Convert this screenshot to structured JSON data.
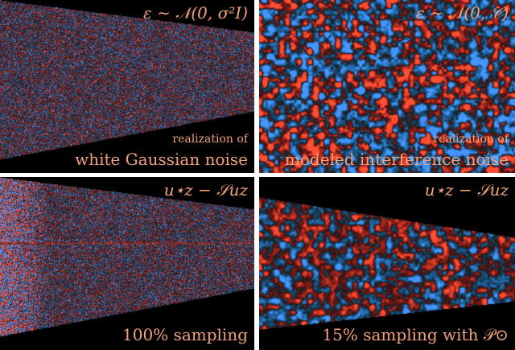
{
  "panels": [
    {
      "id": "top-left",
      "math_label": "ε ∼ 𝒩(0, σ²I)",
      "caption_line1": "realization of",
      "caption_line2": "white Gaussian noise",
      "noise_style": "white",
      "shape": "wedge"
    },
    {
      "id": "top-right",
      "math_label": "ε ∼ 𝒩(0, 𝒞)",
      "caption_line1": "realization of",
      "caption_line2": "modeled interference noise",
      "noise_style": "correlated",
      "shape": "full"
    },
    {
      "id": "bottom-left",
      "math_label": "u⋆z − 𝒮uz",
      "caption_line1": "",
      "caption_line2": "100% sampling",
      "noise_style": "white-residual",
      "shape": "wedge"
    },
    {
      "id": "bottom-right",
      "math_label": "u⋆z − 𝒮uz",
      "caption_line1": "",
      "caption_line2": "15% sampling with 𝒫⊙",
      "noise_style": "correlated-band",
      "shape": "band"
    }
  ],
  "colors": {
    "label": "#f2a27a",
    "background": "#000000",
    "positive": "#e8402a",
    "negative": "#3d7cf0"
  }
}
